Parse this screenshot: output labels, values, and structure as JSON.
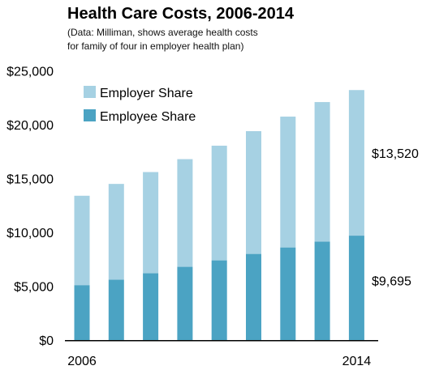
{
  "chart_data": {
    "type": "bar",
    "stacked": true,
    "title": "Health Care Costs, 2006-2014",
    "subtitle_lines": [
      "(Data: Milliman, shows average health costs",
      "for family of four in employer health plan)"
    ],
    "x": [
      2006,
      2007,
      2008,
      2009,
      2010,
      2011,
      2012,
      2013,
      2014
    ],
    "x_tick_labels": [
      "2006",
      "",
      "",
      "",
      "",
      "",
      "",
      "",
      "2014"
    ],
    "ylim": [
      0,
      25000
    ],
    "y_ticks": [
      0,
      5000,
      10000,
      15000,
      20000,
      25000
    ],
    "y_tick_labels": [
      "$0",
      "$5,000",
      "$10,000",
      "$15,000",
      "$20,000",
      "$25,000"
    ],
    "grid": false,
    "legend_position": "top-left",
    "series": [
      {
        "name": "Employee Share",
        "color": "#4ba3c3",
        "values": [
          5100,
          5600,
          6200,
          6800,
          7400,
          8000,
          8600,
          9150,
          9695
        ]
      },
      {
        "name": "Employer Share",
        "color": "#a6d1e3",
        "values": [
          8300,
          8900,
          9400,
          10000,
          10650,
          11400,
          12150,
          12950,
          13520
        ]
      }
    ],
    "legend_order": [
      "Employer Share",
      "Employee Share"
    ],
    "annotations": [
      {
        "text": "$13,520",
        "series": "Employer Share",
        "x": 2014
      },
      {
        "text": "$9,695",
        "series": "Employee Share",
        "x": 2014
      }
    ]
  }
}
